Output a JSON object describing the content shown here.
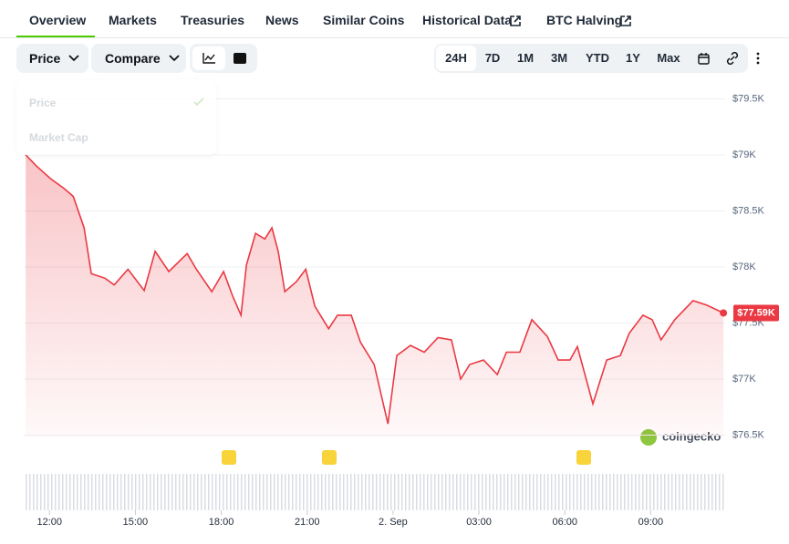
{
  "tabs": [
    "Overview",
    "Markets",
    "Treasuries",
    "News",
    "Similar Coins",
    "Historical Data",
    "BTC Halving"
  ],
  "controls": {
    "metric": "Price",
    "compare": "Compare",
    "ranges": [
      "24H",
      "7D",
      "1M",
      "3M",
      "YTD",
      "1Y",
      "Max"
    ]
  },
  "dropdown": [
    "Price",
    "Market Cap"
  ],
  "watermark": "coingecko",
  "chart_data": {
    "type": "line",
    "color": "#ea3943",
    "x": [
      11.17,
      11.55,
      12.03,
      12.51,
      12.83,
      13.21,
      13.46,
      13.94,
      14.26,
      14.74,
      15.31,
      15.69,
      16.17,
      16.81,
      17.13,
      17.67,
      18.08,
      18.4,
      18.69,
      18.88,
      19.2,
      19.52,
      19.77,
      19.99,
      20.22,
      20.63,
      20.95,
      21.27,
      21.75,
      22.06,
      22.54,
      22.86,
      23.34,
      23.82,
      24.13,
      24.61,
      25.09,
      25.57,
      26.04,
      26.36,
      26.68,
      27.16,
      27.64,
      27.96,
      28.43,
      28.85,
      29.39,
      29.77,
      30.18,
      30.44,
      30.98,
      31.46,
      31.94,
      32.25,
      32.73,
      33.05,
      33.36,
      33.84,
      34.48,
      34.96,
      35.54
    ],
    "values": [
      79000,
      78900,
      78790,
      78700,
      78630,
      78350,
      77940,
      77900,
      77840,
      77980,
      77790,
      78140,
      77960,
      78120,
      77980,
      77780,
      77960,
      77740,
      77570,
      78020,
      78300,
      78250,
      78350,
      78140,
      77780,
      77870,
      77980,
      77650,
      77450,
      77570,
      77570,
      77330,
      77130,
      76600,
      77210,
      77300,
      77240,
      77370,
      77350,
      77000,
      77130,
      77170,
      77040,
      77240,
      77240,
      77530,
      77380,
      77170,
      77170,
      77290,
      76780,
      77170,
      77210,
      77410,
      77570,
      77530,
      77350,
      77530,
      77700,
      77660,
      77590
    ],
    "last_label": "$77.59K",
    "xlim": [
      11.1,
      35.6
    ],
    "xticks": [
      {
        "value": 12,
        "label": "12:00"
      },
      {
        "value": 15,
        "label": "15:00"
      },
      {
        "value": 18,
        "label": "18:00"
      },
      {
        "value": 21,
        "label": "21:00"
      },
      {
        "value": 24,
        "label": "2. Sep"
      },
      {
        "value": 27,
        "label": "03:00"
      },
      {
        "value": 30,
        "label": "06:00"
      },
      {
        "value": 33,
        "label": "09:00"
      }
    ],
    "ylim": [
      76480,
      79610
    ],
    "yticks": [
      {
        "value": 76500,
        "label": "$76.5K"
      },
      {
        "value": 77000,
        "label": "$77K"
      },
      {
        "value": 77500,
        "label": "$77.5K"
      },
      {
        "value": 78000,
        "label": "$78K"
      },
      {
        "value": 78500,
        "label": "$78.5K"
      },
      {
        "value": 79000,
        "label": "$79K"
      },
      {
        "value": 79500,
        "label": "$79.5K"
      }
    ],
    "grid": true
  }
}
